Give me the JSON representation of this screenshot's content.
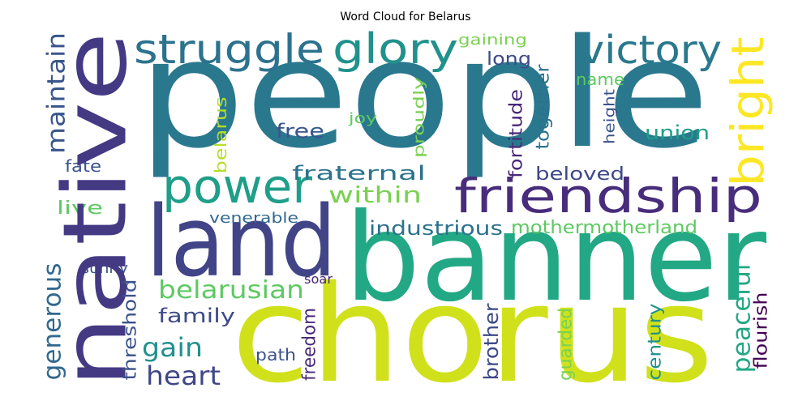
{
  "chart_data": {
    "type": "wordcloud",
    "title": "Word Cloud for Belarus",
    "words": [
      {
        "text": "people",
        "color": "#2a788e"
      },
      {
        "text": "banner",
        "color": "#22a884"
      },
      {
        "text": "chorus",
        "color": "#d0e11c"
      },
      {
        "text": "land",
        "color": "#414487"
      },
      {
        "text": "friendship",
        "color": "#472d7b"
      },
      {
        "text": "power",
        "color": "#1f9e89"
      },
      {
        "text": "struggle",
        "color": "#2c728e"
      },
      {
        "text": "glory",
        "color": "#21918c"
      },
      {
        "text": "victory",
        "color": "#2a788e"
      },
      {
        "text": "long",
        "color": "#3e4a89"
      },
      {
        "text": "gaining",
        "color": "#7ad151"
      },
      {
        "text": "name",
        "color": "#5ec962"
      },
      {
        "text": "joy",
        "color": "#5ec962"
      },
      {
        "text": "free",
        "color": "#39568c"
      },
      {
        "text": "union",
        "color": "#1f9e89"
      },
      {
        "text": "fate",
        "color": "#3b528b"
      },
      {
        "text": "fraternal",
        "color": "#2c728e"
      },
      {
        "text": "beloved",
        "color": "#3e4989"
      },
      {
        "text": "within",
        "color": "#7ad151"
      },
      {
        "text": "live",
        "color": "#5ec962"
      },
      {
        "text": "venerable",
        "color": "#31688e"
      },
      {
        "text": "industrious",
        "color": "#2c728e"
      },
      {
        "text": "mothermotherland",
        "color": "#5ec962"
      },
      {
        "text": "sunny",
        "color": "#3b528b"
      },
      {
        "text": "soar",
        "color": "#482878"
      },
      {
        "text": "belarusian",
        "color": "#5ec962"
      },
      {
        "text": "family",
        "color": "#3e4a89"
      },
      {
        "text": "gain",
        "color": "#21918c"
      },
      {
        "text": "heart",
        "color": "#404688"
      },
      {
        "text": "path",
        "color": "#3b528b"
      },
      {
        "text": "native",
        "color": "#443983"
      },
      {
        "text": "maintain",
        "color": "#39568c"
      },
      {
        "text": "generous",
        "color": "#31688e"
      },
      {
        "text": "bright",
        "color": "#fde725"
      },
      {
        "text": "belarus",
        "color": "#b5de2b"
      },
      {
        "text": "proudly",
        "color": "#7ad151"
      },
      {
        "text": "fortitude",
        "color": "#482878"
      },
      {
        "text": "together",
        "color": "#2c728e"
      },
      {
        "text": "height",
        "color": "#3b528b"
      },
      {
        "text": "threshold",
        "color": "#3b528b"
      },
      {
        "text": "freedom",
        "color": "#482878"
      },
      {
        "text": "brother",
        "color": "#3e4989"
      },
      {
        "text": "guarded",
        "color": "#7ad151"
      },
      {
        "text": "century",
        "color": "#21918c"
      },
      {
        "text": "peaceful",
        "color": "#22a884"
      },
      {
        "text": "flourish",
        "color": "#440154"
      }
    ]
  }
}
